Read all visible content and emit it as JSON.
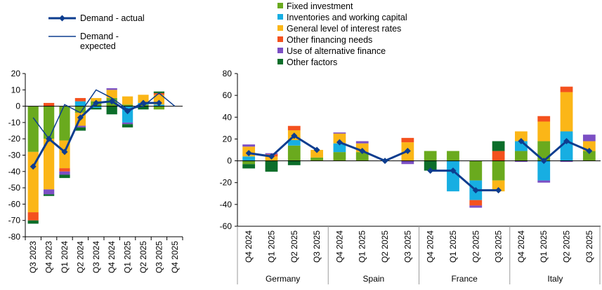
{
  "left_legend": {
    "actual_label": "Demand - actual",
    "expected_label_line1": "Demand -",
    "expected_label_line2": "expected"
  },
  "right_legend": {
    "items": [
      {
        "label": "Fixed investment",
        "color": "#6aaa1e"
      },
      {
        "label": "Inventories and working capital",
        "color": "#17aee2"
      },
      {
        "label": "General level of interest rates",
        "color": "#fbb617"
      },
      {
        "label": "Other financing needs",
        "color": "#f4511e"
      },
      {
        "label": "Use of alternative finance",
        "color": "#7b4fc4"
      },
      {
        "label": "Other factors",
        "color": "#0c6e2a"
      }
    ]
  },
  "colors": {
    "actual_line": "#0d3d8f",
    "expected_line": "#0d3d8f",
    "axis": "#000000",
    "separator": "#9a9a9a"
  },
  "chart_data": [
    {
      "type": "bar",
      "stacked": true,
      "categories": [
        "Q3 2023",
        "Q4 2023",
        "Q1 2024",
        "Q2 2024",
        "Q3 2024",
        "Q4 2024",
        "Q1 2025",
        "Q2 2025",
        "Q3 2025",
        "Q4 2025"
      ],
      "ylim": [
        -80,
        20
      ],
      "yticks": [
        -80,
        -70,
        -60,
        -50,
        -40,
        -30,
        -20,
        -10,
        0,
        10,
        20
      ],
      "series": [
        {
          "name": "Fixed investment",
          "color": "#6aaa1e",
          "values": [
            -28,
            -20,
            -21,
            -4,
            3,
            5,
            1,
            1,
            -2,
            0
          ]
        },
        {
          "name": "Inventories and working capital",
          "color": "#17aee2",
          "values": [
            0,
            0,
            0,
            3,
            -1,
            0,
            -10,
            1,
            1,
            0
          ]
        },
        {
          "name": "General level of interest rates",
          "color": "#fbb617",
          "values": [
            -37,
            -31,
            -17,
            -8,
            2,
            5,
            5,
            5,
            6,
            0
          ]
        },
        {
          "name": "Other financing needs",
          "color": "#f4511e",
          "values": [
            -5,
            2,
            -2,
            2,
            0,
            0,
            0,
            0,
            1,
            0
          ]
        },
        {
          "name": "Use of alternative finance",
          "color": "#7b4fc4",
          "values": [
            0,
            -3,
            -2,
            -1,
            0,
            1,
            -1,
            0,
            0,
            0
          ]
        },
        {
          "name": "Other factors",
          "color": "#0c6e2a",
          "values": [
            -2,
            -1,
            -2,
            -2,
            -1,
            -5,
            -2,
            -2,
            1,
            0
          ]
        }
      ],
      "lines": [
        {
          "name": "Demand - actual",
          "values": [
            -37,
            -20,
            -28,
            -7,
            2,
            3,
            -3,
            2,
            2,
            null
          ]
        },
        {
          "name": "Demand - expected",
          "values": [
            -7,
            -20,
            1,
            -4,
            10,
            5,
            -2,
            0,
            8,
            0
          ]
        }
      ]
    },
    {
      "type": "bar",
      "stacked": true,
      "groups": [
        {
          "name": "Germany",
          "categories": [
            "Q4 2024",
            "Q1 2025",
            "Q2 2025",
            "Q3 2025"
          ]
        },
        {
          "name": "Spain",
          "categories": [
            "Q4 2024",
            "Q1 2025",
            "Q2 2025",
            "Q3 2025"
          ]
        },
        {
          "name": "France",
          "categories": [
            "Q4 2024",
            "Q1 2025",
            "Q2 2025",
            "Q3 2025"
          ]
        },
        {
          "name": "Italy",
          "categories": [
            "Q4 2024",
            "Q1 2025",
            "Q2 2025",
            "Q3 2025"
          ]
        }
      ],
      "ylim": [
        -60,
        80
      ],
      "yticks": [
        -60,
        -40,
        -20,
        0,
        20,
        40,
        60,
        80
      ],
      "series": [
        {
          "name": "Fixed investment",
          "color": "#6aaa1e",
          "values": [
            -3,
            0,
            14,
            3,
            8,
            8,
            0,
            0,
            9,
            9,
            -18,
            -18,
            9,
            18,
            0,
            9
          ]
        },
        {
          "name": "Inventories and working capital",
          "color": "#17aee2",
          "values": [
            4,
            0,
            5,
            0,
            8,
            0,
            0,
            0,
            0,
            -28,
            -18,
            0,
            9,
            -18,
            27,
            0
          ]
        },
        {
          "name": "General level of interest rates",
          "color": "#fbb617",
          "values": [
            9,
            4,
            9,
            7,
            9,
            8,
            0,
            17,
            0,
            0,
            0,
            -10,
            9,
            18,
            36,
            9
          ]
        },
        {
          "name": "Other financing needs",
          "color": "#f4511e",
          "values": [
            0,
            2,
            4,
            0,
            0,
            0,
            0,
            4,
            0,
            0,
            -5,
            9,
            0,
            5,
            5,
            0
          ]
        },
        {
          "name": "Use of alternative finance",
          "color": "#7b4fc4",
          "values": [
            2,
            1,
            0,
            0,
            1,
            2,
            0,
            -3,
            0,
            0,
            -2,
            0,
            -1,
            -2,
            -1,
            6
          ]
        },
        {
          "name": "Other factors",
          "color": "#0c6e2a",
          "values": [
            -4,
            -10,
            -4,
            0,
            0,
            0,
            0,
            0,
            -9,
            0,
            0,
            9,
            0,
            0,
            0,
            0
          ]
        }
      ],
      "lines": [
        {
          "name": "Demand - actual",
          "values": [
            7,
            4,
            23,
            10,
            17,
            9,
            0,
            9,
            -9,
            -9,
            -27,
            -27,
            18,
            0,
            18,
            9
          ]
        }
      ]
    }
  ]
}
